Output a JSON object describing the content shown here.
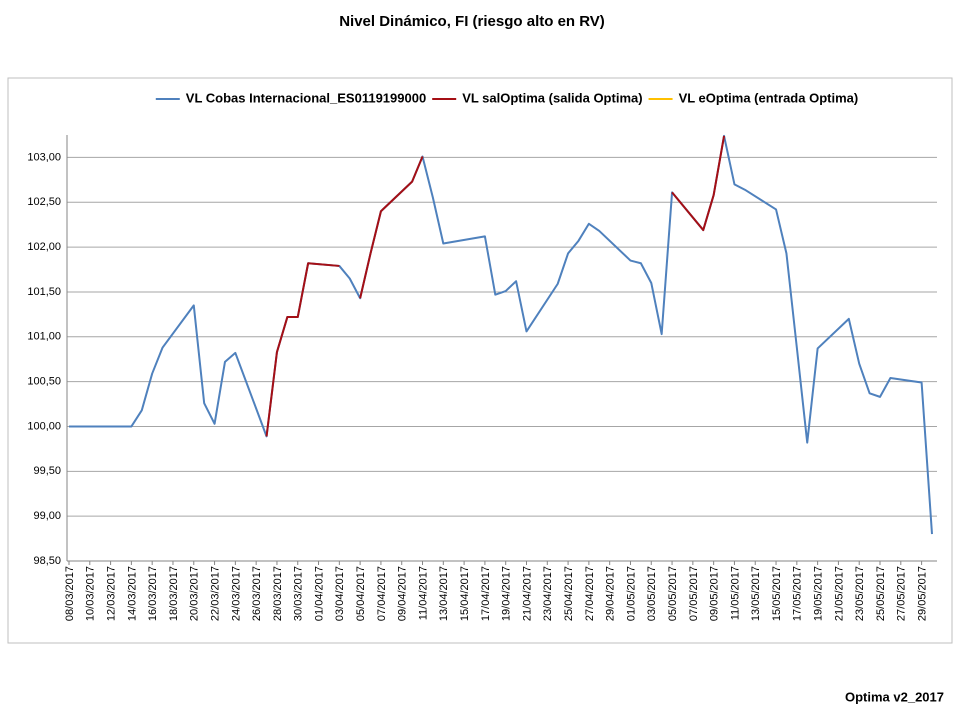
{
  "chart_data": {
    "type": "line",
    "title": "Nivel Dinámico, FI (riesgo alto en RV)",
    "footer": "Optima v2_2017",
    "x": [
      "08/03/2017",
      "09/03/2017",
      "10/03/2017",
      "13/03/2017",
      "14/03/2017",
      "15/03/2017",
      "16/03/2017",
      "17/03/2017",
      "20/03/2017",
      "21/03/2017",
      "22/03/2017",
      "23/03/2017",
      "24/03/2017",
      "27/03/2017",
      "28/03/2017",
      "29/03/2017",
      "30/03/2017",
      "31/03/2017",
      "03/04/2017",
      "04/04/2017",
      "05/04/2017",
      "06/04/2017",
      "07/04/2017",
      "10/04/2017",
      "11/04/2017",
      "12/04/2017",
      "13/04/2017",
      "17/04/2017",
      "18/04/2017",
      "19/04/2017",
      "20/04/2017",
      "21/04/2017",
      "24/04/2017",
      "25/04/2017",
      "26/04/2017",
      "27/04/2017",
      "28/04/2017",
      "01/05/2017",
      "02/05/2017",
      "03/05/2017",
      "04/05/2017",
      "05/05/2017",
      "08/05/2017",
      "09/05/2017",
      "10/05/2017",
      "11/05/2017",
      "12/05/2017",
      "15/05/2017",
      "16/05/2017",
      "17/05/2017",
      "18/05/2017",
      "19/05/2017",
      "22/05/2017",
      "23/05/2017",
      "24/05/2017",
      "25/05/2017",
      "26/05/2017",
      "29/05/2017",
      "30/05/2017"
    ],
    "series": [
      {
        "name": "VL Cobas Internacional_ES0119199000",
        "color": "#4f81bd",
        "values": [
          100.0,
          100.0,
          100.0,
          100.0,
          100.0,
          100.18,
          100.59,
          100.88,
          101.35,
          100.26,
          100.03,
          100.72,
          100.82,
          99.89,
          100.83,
          101.22,
          101.22,
          101.82,
          101.79,
          101.65,
          101.43,
          101.93,
          102.4,
          102.73,
          103.01,
          102.55,
          102.04,
          102.12,
          101.47,
          101.51,
          101.62,
          101.06,
          101.59,
          101.93,
          102.07,
          102.26,
          102.18,
          101.85,
          101.82,
          101.6,
          101.03,
          102.61,
          102.19,
          102.58,
          103.24,
          102.7,
          102.64,
          102.42,
          101.93,
          100.88,
          99.82,
          100.87,
          101.2,
          100.7,
          100.37,
          100.33,
          100.54,
          100.49,
          98.8
        ]
      },
      {
        "name": "VL salOptima (salida Optima)",
        "color": "#a50f15",
        "values": [
          null,
          null,
          null,
          null,
          null,
          null,
          null,
          null,
          null,
          null,
          null,
          null,
          null,
          99.89,
          100.83,
          101.22,
          101.22,
          101.82,
          101.79,
          null,
          101.43,
          101.93,
          102.4,
          102.73,
          103.01,
          null,
          null,
          null,
          null,
          null,
          null,
          null,
          null,
          null,
          null,
          null,
          null,
          null,
          null,
          null,
          null,
          102.61,
          102.19,
          102.58,
          103.24,
          null,
          null,
          null,
          null,
          null,
          null,
          null,
          null,
          null,
          null,
          null,
          null,
          null,
          null
        ]
      },
      {
        "name": "VL eOptima (entrada Optima)",
        "color": "#ffc000",
        "values": [
          null,
          null,
          null,
          null,
          null,
          null,
          null,
          null,
          null,
          null,
          null,
          null,
          null,
          null,
          null,
          null,
          null,
          null,
          null,
          null,
          null,
          null,
          null,
          null,
          null,
          null,
          null,
          null,
          null,
          null,
          null,
          null,
          null,
          null,
          null,
          null,
          null,
          null,
          null,
          null,
          null,
          null,
          null,
          null,
          null,
          null,
          null,
          null,
          null,
          null,
          null,
          null,
          null,
          null,
          null,
          null,
          null,
          null,
          null
        ]
      }
    ],
    "xlim": [
      "08/03/2017",
      "30/05/2017"
    ],
    "xticks": [
      "08/03/2017",
      "10/03/2017",
      "12/03/2017",
      "14/03/2017",
      "16/03/2017",
      "18/03/2017",
      "20/03/2017",
      "22/03/2017",
      "24/03/2017",
      "26/03/2017",
      "28/03/2017",
      "30/03/2017",
      "01/04/2017",
      "03/04/2017",
      "05/04/2017",
      "07/04/2017",
      "09/04/2017",
      "11/04/2017",
      "13/04/2017",
      "15/04/2017",
      "17/04/2017",
      "19/04/2017",
      "21/04/2017",
      "23/04/2017",
      "25/04/2017",
      "27/04/2017",
      "29/04/2017",
      "01/05/2017",
      "03/05/2017",
      "05/05/2017",
      "07/05/2017",
      "09/05/2017",
      "11/05/2017",
      "13/05/2017",
      "15/05/2017",
      "17/05/2017",
      "19/05/2017",
      "21/05/2017",
      "23/05/2017",
      "25/05/2017",
      "27/05/2017",
      "29/05/2017"
    ],
    "ylim": [
      98.5,
      103.25
    ],
    "yticks": [
      {
        "value": 98.5,
        "label": "98,50"
      },
      {
        "value": 99,
        "label": "99,00"
      },
      {
        "value": 99.5,
        "label": "99,50"
      },
      {
        "value": 100,
        "label": "100,00"
      },
      {
        "value": 100.5,
        "label": "100,50"
      },
      {
        "value": 101,
        "label": "101,00"
      },
      {
        "value": 101.5,
        "label": "101,50"
      },
      {
        "value": 102,
        "label": "102,00"
      },
      {
        "value": 102.5,
        "label": "102,50"
      },
      {
        "value": 103,
        "label": "103,00"
      }
    ],
    "grid": true,
    "legend": "top"
  }
}
